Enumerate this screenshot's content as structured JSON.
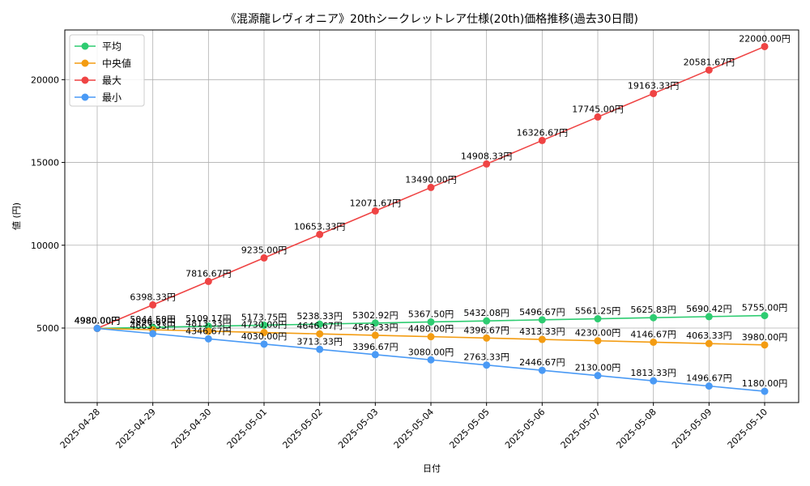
{
  "chart_data": {
    "type": "line",
    "title": "《混源龍レヴィオニア》20thシークレットレア仕様(20th)価格推移(過去30日間)",
    "xlabel": "日付",
    "ylabel": "値 (円)",
    "ylim": [
      500,
      23000
    ],
    "yticks": [
      5000,
      10000,
      15000,
      20000
    ],
    "grid": true,
    "legend_position": "top-left",
    "categories": [
      "2025-04-28",
      "2025-04-29",
      "2025-04-30",
      "2025-05-01",
      "2025-05-02",
      "2025-05-03",
      "2025-05-04",
      "2025-05-05",
      "2025-05-06",
      "2025-05-07",
      "2025-05-08",
      "2025-05-09",
      "2025-05-10"
    ],
    "series": [
      {
        "name": "平均",
        "color": "#2ecc71",
        "values": [
          4980.0,
          5044.58,
          5109.17,
          5173.75,
          5238.33,
          5302.92,
          5367.5,
          5432.08,
          5496.67,
          5561.25,
          5625.83,
          5690.42,
          5755.0
        ],
        "labels": [
          "4980.00円",
          "5044.58円",
          "5109.17円",
          "5173.75円",
          "5238.33円",
          "5302.92円",
          "5367.50円",
          "5432.08円",
          "5496.67円",
          "5561.25円",
          "5625.83円",
          "5690.42円",
          "5755.00円"
        ]
      },
      {
        "name": "中央値",
        "color": "#f39c12",
        "values": [
          4980.0,
          4896.67,
          4813.33,
          4730.0,
          4646.67,
          4563.33,
          4480.0,
          4396.67,
          4313.33,
          4230.0,
          4146.67,
          4063.33,
          3980.0
        ],
        "labels": [
          "4980.00円",
          "4896.67円",
          "4813.33円",
          "4730.00円",
          "4646.67円",
          "4563.33円",
          "4480.00円",
          "4396.67円",
          "4313.33円",
          "4230.00円",
          "4146.67円",
          "4063.33円",
          "3980.00円"
        ]
      },
      {
        "name": "最大",
        "color": "#ef4444",
        "values": [
          4980.0,
          6398.33,
          7816.67,
          9235.0,
          10653.33,
          12071.67,
          13490.0,
          14908.33,
          16326.67,
          17745.0,
          19163.33,
          20581.67,
          22000.0
        ],
        "labels": [
          "4980.00円",
          "6398.33円",
          "7816.67円",
          "9235.00円",
          "10653.33円",
          "12071.67円",
          "13490.00円",
          "14908.33円",
          "16326.67円",
          "17745.00円",
          "19163.33円",
          "20581.67円",
          "22000.00円"
        ]
      },
      {
        "name": "最小",
        "color": "#4a9af5",
        "values": [
          4980.0,
          4663.33,
          4346.67,
          4030.0,
          3713.33,
          3396.67,
          3080.0,
          2763.33,
          2446.67,
          2130.0,
          1813.33,
          1496.67,
          1180.0
        ],
        "labels": [
          "4980.00円",
          "4663.33円",
          "4346.67円",
          "4030.00円",
          "3713.33円",
          "3396.67円",
          "3080.00円",
          "2763.33円",
          "2446.67円",
          "2130.00円",
          "1813.33円",
          "1496.67円",
          "1180.00円"
        ]
      }
    ]
  }
}
